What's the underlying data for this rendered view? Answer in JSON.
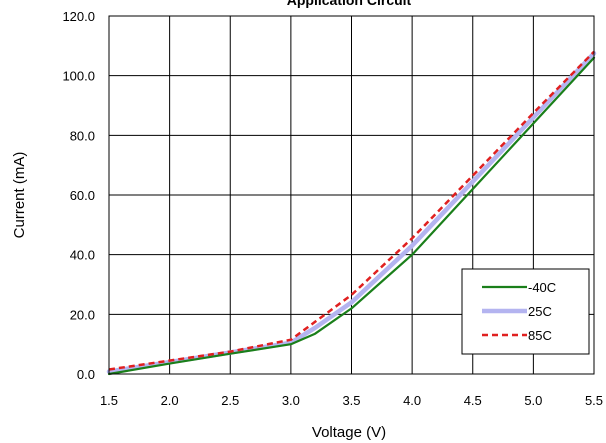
{
  "chart_data": {
    "type": "line",
    "title": "Application Circuit",
    "xlabel": "Voltage (V)",
    "ylabel": "Current (mA)",
    "xlim": [
      1.5,
      5.5
    ],
    "ylim": [
      0,
      120
    ],
    "x_ticks": [
      "1.5",
      "2.0",
      "2.5",
      "3.0",
      "3.5",
      "4.0",
      "4.5",
      "5.0",
      "5.5"
    ],
    "y_ticks": [
      "0.0",
      "20.0",
      "40.0",
      "60.0",
      "80.0",
      "100.0",
      "120.0"
    ],
    "grid": true,
    "legend_position": "bottom-right",
    "series": [
      {
        "name": "-40C",
        "color": "#1a7f1a",
        "style": "solid",
        "x": [
          1.5,
          2.0,
          2.5,
          3.0,
          3.2,
          3.5,
          4.0,
          4.5,
          5.0,
          5.5
        ],
        "y": [
          0.0,
          3.5,
          6.8,
          10.0,
          13.5,
          22.0,
          40.0,
          62.0,
          84.0,
          106.0
        ]
      },
      {
        "name": "25C",
        "color": "#b4b4f0",
        "style": "solid",
        "x": [
          1.5,
          2.0,
          2.5,
          3.0,
          3.2,
          3.5,
          4.0,
          4.5,
          5.0,
          5.5
        ],
        "y": [
          0.8,
          4.0,
          7.2,
          10.5,
          15.5,
          24.0,
          43.0,
          64.5,
          86.0,
          107.5
        ]
      },
      {
        "name": "85C",
        "color": "#e02020",
        "style": "dashed",
        "x": [
          1.5,
          2.0,
          2.5,
          3.0,
          3.2,
          3.5,
          4.0,
          4.5,
          5.0,
          5.5
        ],
        "y": [
          1.5,
          4.5,
          7.5,
          11.5,
          17.5,
          26.5,
          45.5,
          66.5,
          87.5,
          108.0
        ]
      }
    ]
  }
}
